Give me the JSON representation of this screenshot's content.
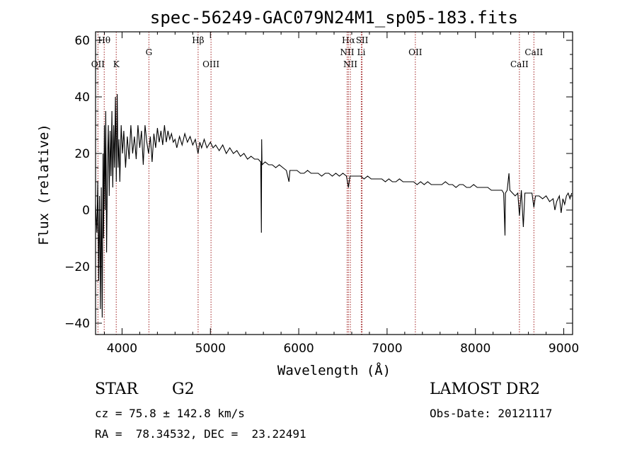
{
  "chart_data": {
    "type": "line",
    "title": "spec-56249-GAC079N24M1_sp05-183.fits",
    "xlabel": "Wavelength (Å)",
    "ylabel": "Flux (relative)",
    "xlim": [
      3700,
      9100
    ],
    "ylim": [
      -44,
      63
    ],
    "xticks": [
      4000,
      5000,
      6000,
      7000,
      8000,
      9000
    ],
    "xtick_labels": [
      "4000",
      "5000",
      "6000",
      "7000",
      "8000",
      "9000"
    ],
    "yticks": [
      -40,
      -20,
      0,
      20,
      40,
      60
    ],
    "ytick_labels": [
      "−40",
      "−20",
      "0",
      "20",
      "40",
      "60"
    ],
    "line_color": "#000000",
    "marker_color": "#a02020",
    "spectrum": [
      [
        3700,
        2
      ],
      [
        3715,
        -8
      ],
      [
        3725,
        10
      ],
      [
        3735,
        -25
      ],
      [
        3745,
        5
      ],
      [
        3755,
        -35
      ],
      [
        3765,
        8
      ],
      [
        3775,
        -38
      ],
      [
        3785,
        20
      ],
      [
        3790,
        -10
      ],
      [
        3800,
        30
      ],
      [
        3808,
        0
      ],
      [
        3815,
        35
      ],
      [
        3825,
        -15
      ],
      [
        3835,
        15
      ],
      [
        3845,
        30
      ],
      [
        3855,
        5
      ],
      [
        3865,
        28
      ],
      [
        3875,
        12
      ],
      [
        3885,
        35
      ],
      [
        3895,
        8
      ],
      [
        3905,
        30
      ],
      [
        3915,
        15
      ],
      [
        3925,
        40
      ],
      [
        3935,
        10
      ],
      [
        3945,
        41
      ],
      [
        3955,
        15
      ],
      [
        3965,
        25
      ],
      [
        3975,
        10
      ],
      [
        3990,
        30
      ],
      [
        4005,
        20
      ],
      [
        4020,
        28
      ],
      [
        4040,
        15
      ],
      [
        4060,
        26
      ],
      [
        4080,
        18
      ],
      [
        4100,
        30
      ],
      [
        4120,
        20
      ],
      [
        4140,
        26
      ],
      [
        4160,
        18
      ],
      [
        4180,
        30
      ],
      [
        4200,
        22
      ],
      [
        4220,
        28
      ],
      [
        4240,
        16
      ],
      [
        4260,
        30
      ],
      [
        4280,
        24
      ],
      [
        4300,
        20
      ],
      [
        4320,
        26
      ],
      [
        4340,
        17
      ],
      [
        4360,
        27
      ],
      [
        4380,
        22
      ],
      [
        4400,
        29
      ],
      [
        4420,
        24
      ],
      [
        4440,
        28
      ],
      [
        4460,
        23
      ],
      [
        4480,
        30
      ],
      [
        4500,
        24
      ],
      [
        4520,
        28
      ],
      [
        4540,
        25
      ],
      [
        4560,
        27
      ],
      [
        4580,
        24
      ],
      [
        4600,
        25
      ],
      [
        4620,
        22
      ],
      [
        4650,
        26
      ],
      [
        4680,
        23
      ],
      [
        4710,
        27
      ],
      [
        4740,
        24
      ],
      [
        4770,
        26
      ],
      [
        4800,
        23
      ],
      [
        4830,
        25
      ],
      [
        4860,
        20
      ],
      [
        4880,
        24
      ],
      [
        4900,
        22
      ],
      [
        4930,
        25
      ],
      [
        4960,
        22
      ],
      [
        5000,
        24
      ],
      [
        5030,
        22
      ],
      [
        5060,
        23
      ],
      [
        5100,
        21
      ],
      [
        5140,
        23
      ],
      [
        5180,
        20
      ],
      [
        5220,
        22
      ],
      [
        5260,
        20
      ],
      [
        5300,
        21
      ],
      [
        5340,
        19
      ],
      [
        5380,
        20
      ],
      [
        5420,
        18
      ],
      [
        5460,
        19
      ],
      [
        5500,
        18
      ],
      [
        5540,
        18
      ],
      [
        5570,
        17
      ],
      [
        5577,
        -8
      ],
      [
        5580,
        25
      ],
      [
        5584,
        16
      ],
      [
        5620,
        17
      ],
      [
        5660,
        16
      ],
      [
        5700,
        16
      ],
      [
        5740,
        15
      ],
      [
        5780,
        16
      ],
      [
        5820,
        15
      ],
      [
        5860,
        14
      ],
      [
        5890,
        10
      ],
      [
        5900,
        14
      ],
      [
        5940,
        14
      ],
      [
        5980,
        14
      ],
      [
        6020,
        13
      ],
      [
        6060,
        13
      ],
      [
        6100,
        14
      ],
      [
        6140,
        13
      ],
      [
        6180,
        13
      ],
      [
        6220,
        13
      ],
      [
        6260,
        12
      ],
      [
        6300,
        13
      ],
      [
        6340,
        13
      ],
      [
        6380,
        12
      ],
      [
        6420,
        13
      ],
      [
        6460,
        12
      ],
      [
        6500,
        13
      ],
      [
        6540,
        12
      ],
      [
        6563,
        8
      ],
      [
        6580,
        12
      ],
      [
        6620,
        12
      ],
      [
        6660,
        12
      ],
      [
        6700,
        12
      ],
      [
        6740,
        11
      ],
      [
        6780,
        12
      ],
      [
        6820,
        11
      ],
      [
        6860,
        11
      ],
      [
        6900,
        11
      ],
      [
        6940,
        11
      ],
      [
        6980,
        10
      ],
      [
        7020,
        11
      ],
      [
        7060,
        10
      ],
      [
        7100,
        10
      ],
      [
        7140,
        11
      ],
      [
        7180,
        10
      ],
      [
        7220,
        10
      ],
      [
        7260,
        10
      ],
      [
        7300,
        10
      ],
      [
        7340,
        9
      ],
      [
        7380,
        10
      ],
      [
        7420,
        9
      ],
      [
        7460,
        10
      ],
      [
        7500,
        9
      ],
      [
        7540,
        9
      ],
      [
        7580,
        9
      ],
      [
        7620,
        9
      ],
      [
        7660,
        10
      ],
      [
        7700,
        9
      ],
      [
        7740,
        9
      ],
      [
        7780,
        8
      ],
      [
        7820,
        9
      ],
      [
        7860,
        9
      ],
      [
        7900,
        8
      ],
      [
        7940,
        8
      ],
      [
        7980,
        9
      ],
      [
        8020,
        8
      ],
      [
        8060,
        8
      ],
      [
        8100,
        8
      ],
      [
        8140,
        8
      ],
      [
        8180,
        7
      ],
      [
        8220,
        7
      ],
      [
        8260,
        7
      ],
      [
        8300,
        7
      ],
      [
        8320,
        6
      ],
      [
        8335,
        -9
      ],
      [
        8340,
        6
      ],
      [
        8360,
        7
      ],
      [
        8380,
        13
      ],
      [
        8390,
        7
      ],
      [
        8420,
        6
      ],
      [
        8450,
        5
      ],
      [
        8480,
        6
      ],
      [
        8498,
        -2
      ],
      [
        8520,
        7
      ],
      [
        8542,
        -6
      ],
      [
        8560,
        6
      ],
      [
        8600,
        6
      ],
      [
        8640,
        6
      ],
      [
        8662,
        1
      ],
      [
        8680,
        5
      ],
      [
        8720,
        5
      ],
      [
        8760,
        4
      ],
      [
        8800,
        5
      ],
      [
        8840,
        3
      ],
      [
        8880,
        4
      ],
      [
        8900,
        0
      ],
      [
        8920,
        3
      ],
      [
        8950,
        5
      ],
      [
        8970,
        -1
      ],
      [
        8990,
        4
      ],
      [
        9010,
        2
      ],
      [
        9030,
        5
      ],
      [
        9050,
        6
      ],
      [
        9070,
        4
      ],
      [
        9090,
        6
      ]
    ],
    "lines": [
      {
        "name": "Hθ",
        "wave": 3798,
        "row": 1
      },
      {
        "name": "OII",
        "wave": 3727,
        "row": 3
      },
      {
        "name": "K",
        "wave": 3934,
        "row": 3
      },
      {
        "name": "G",
        "wave": 4304,
        "row": 2
      },
      {
        "name": "Hβ",
        "wave": 4861,
        "row": 1
      },
      {
        "name": "OIII",
        "wave": 5007,
        "row": 3
      },
      {
        "name": "Hα",
        "wave": 6563,
        "row": 1
      },
      {
        "name": "NII",
        "wave": 6548,
        "row": 2
      },
      {
        "name": "NII",
        "wave": 6584,
        "row": 3
      },
      {
        "name": "SII",
        "wave": 6717,
        "row": 1
      },
      {
        "name": "Li",
        "wave": 6708,
        "row": 2
      },
      {
        "name": "OII",
        "wave": 7320,
        "row": 2
      },
      {
        "name": "CaII",
        "wave": 8498,
        "row": 3
      },
      {
        "name": "CaII",
        "wave": 8662,
        "row": 2
      }
    ]
  },
  "footer": {
    "object_class": "STAR",
    "subclass": "G2",
    "survey": "LAMOST DR2",
    "cz": "cz = 75.8 ± 142.8 km/s",
    "obs_date": "Obs-Date: 20121117",
    "coords": "RA =  78.34532, DEC =  23.22491"
  }
}
